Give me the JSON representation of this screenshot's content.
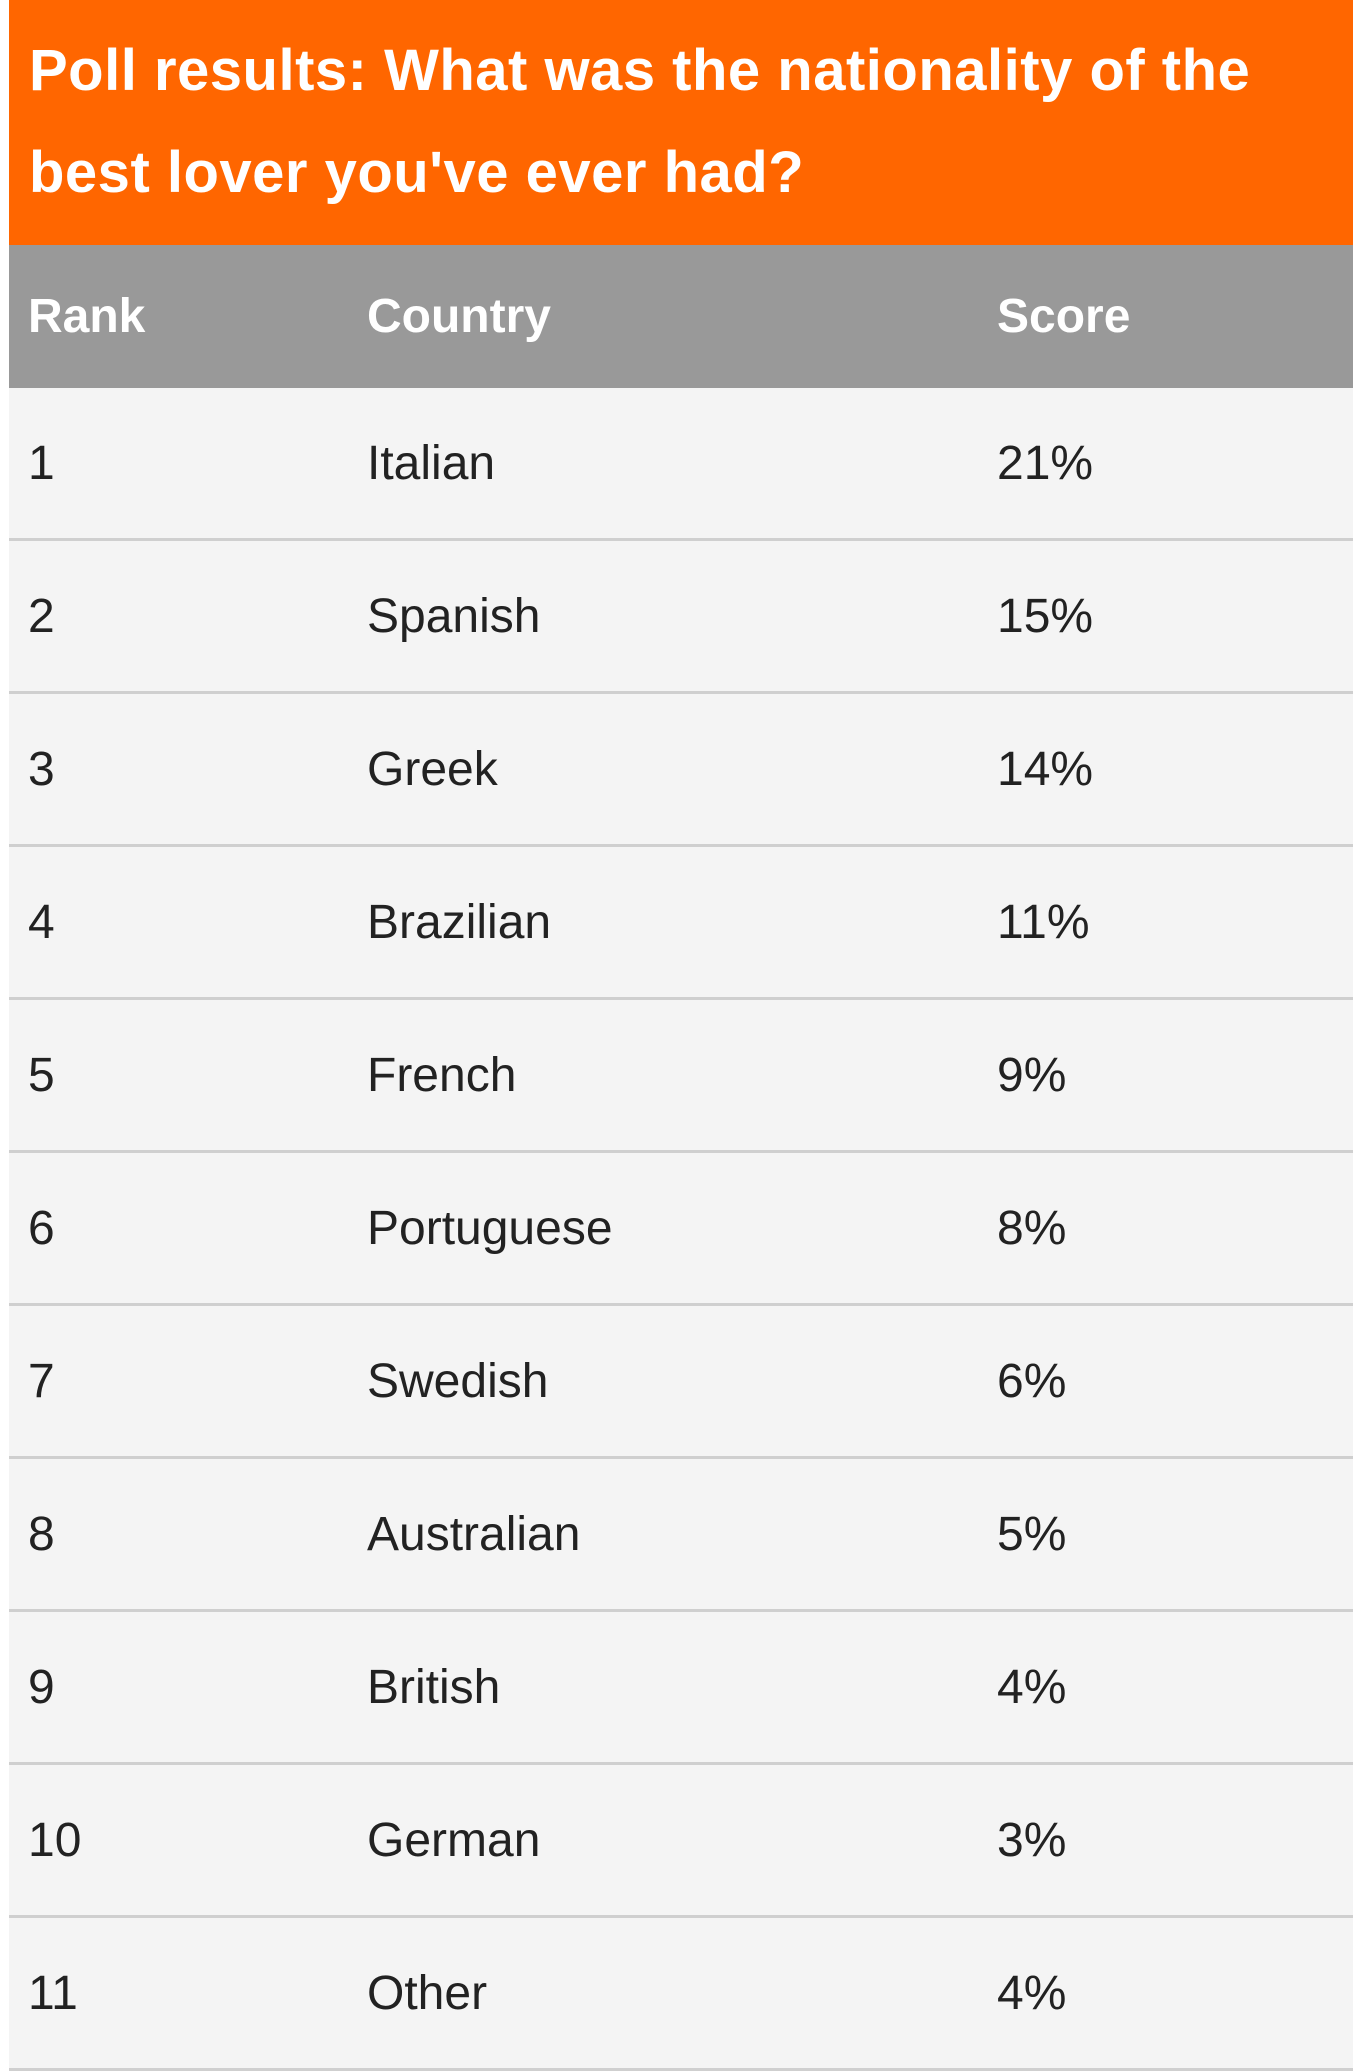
{
  "title": "Poll results: What was the nationality of the best lover you've ever had?",
  "colors": {
    "title_bg": "#ff6600",
    "header_bg": "#999999",
    "row_bg": "#f4f4f4"
  },
  "columns": [
    "Rank",
    "Country",
    "Score"
  ],
  "rows": [
    [
      "1",
      "Italian",
      "21%"
    ],
    [
      "2",
      "Spanish",
      "15%"
    ],
    [
      "3",
      "Greek",
      "14%"
    ],
    [
      "4",
      "Brazilian",
      "11%"
    ],
    [
      "5",
      "French",
      "9%"
    ],
    [
      "6",
      "Portuguese",
      "8%"
    ],
    [
      "7",
      "Swedish",
      "6%"
    ],
    [
      "8",
      "Australian",
      "5%"
    ],
    [
      "9",
      "British",
      "4%"
    ],
    [
      "10",
      "German",
      "3%"
    ],
    [
      "11",
      "Other",
      "4%"
    ]
  ]
}
